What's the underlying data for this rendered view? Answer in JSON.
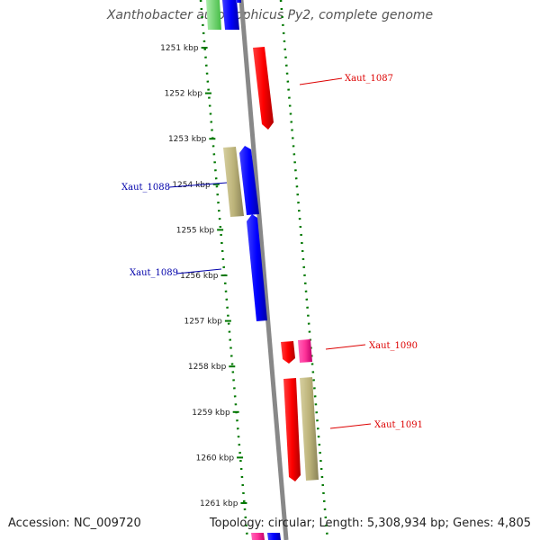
{
  "title": "Xanthobacter autotrophicus Py2, complete genome",
  "footer": {
    "accession": "Accession: NC_009720",
    "summary": "Topology: circular; Length: 5,308,934 bp; Genes: 4,805"
  },
  "ticks": [
    "1251 kbp",
    "1252 kbp",
    "1253 kbp",
    "1254 kbp",
    "1255 kbp",
    "1256 kbp",
    "1257 kbp",
    "1258 kbp",
    "1259 kbp",
    "1260 kbp",
    "1261 kbp"
  ],
  "genes": [
    {
      "label": "Xaut_1087",
      "color": "#dd0000"
    },
    {
      "label": "Xaut_1088",
      "color": "#0000aa"
    },
    {
      "label": "Xaut_1089",
      "color": "#0000aa"
    },
    {
      "label": "Xaut_1090",
      "color": "#dd0000"
    },
    {
      "label": "Xaut_1091",
      "color": "#dd0000"
    }
  ],
  "colors": {
    "forward_red": "#ff0000",
    "reverse_blue": "#0000ff",
    "olive": "#bdb47a",
    "pink": "#ff3399",
    "green": "#66dd66",
    "backbone": "#888888",
    "dots": "#007700"
  }
}
